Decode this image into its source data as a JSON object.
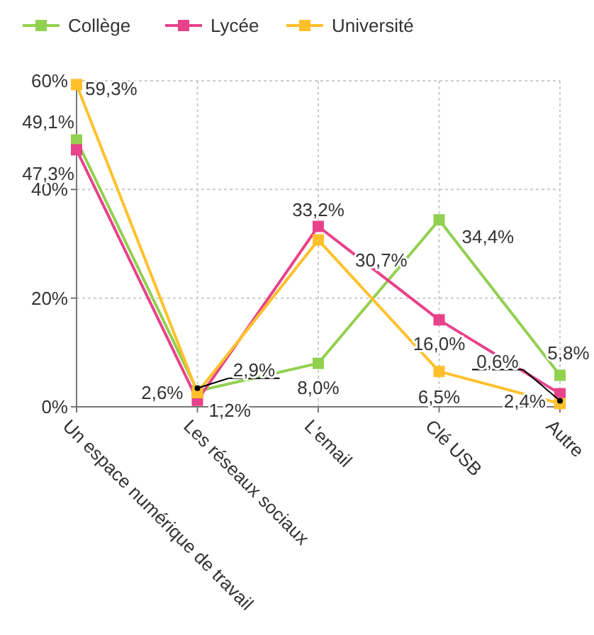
{
  "chart_data": {
    "type": "line",
    "categories": [
      "Un espace numérique de travail",
      "Les réseaux sociaux",
      "L'email",
      "Clé USB",
      "Autre"
    ],
    "series": [
      {
        "name": "Collège",
        "color": "#92d050",
        "values": [
          49.1,
          2.9,
          8.0,
          34.4,
          5.8
        ],
        "value_labels": [
          "49,1%",
          "2,9%",
          "8,0%",
          "34,4%",
          "5,8%"
        ]
      },
      {
        "name": "Lycée",
        "color": "#e8428a",
        "values": [
          47.3,
          1.2,
          33.2,
          16.0,
          2.4
        ],
        "value_labels": [
          "47,3%",
          "1,2%",
          "33,2%",
          "16,0%",
          "2,4%"
        ]
      },
      {
        "name": "Université",
        "color": "#ffc02a",
        "values": [
          59.3,
          2.6,
          30.7,
          6.5,
          0.6
        ],
        "value_labels": [
          "59,3%",
          "2,6%",
          "30,7%",
          "6,5%",
          "0,6%"
        ]
      }
    ],
    "ylim": [
      0,
      60
    ],
    "yticks": [
      {
        "value": 0,
        "label": "0%"
      },
      {
        "value": 20,
        "label": "20%"
      },
      {
        "value": 40,
        "label": "40%"
      },
      {
        "value": 60,
        "label": "60%"
      }
    ],
    "grid": true,
    "legend": "top left",
    "marker": "square",
    "line_style": "solid"
  }
}
